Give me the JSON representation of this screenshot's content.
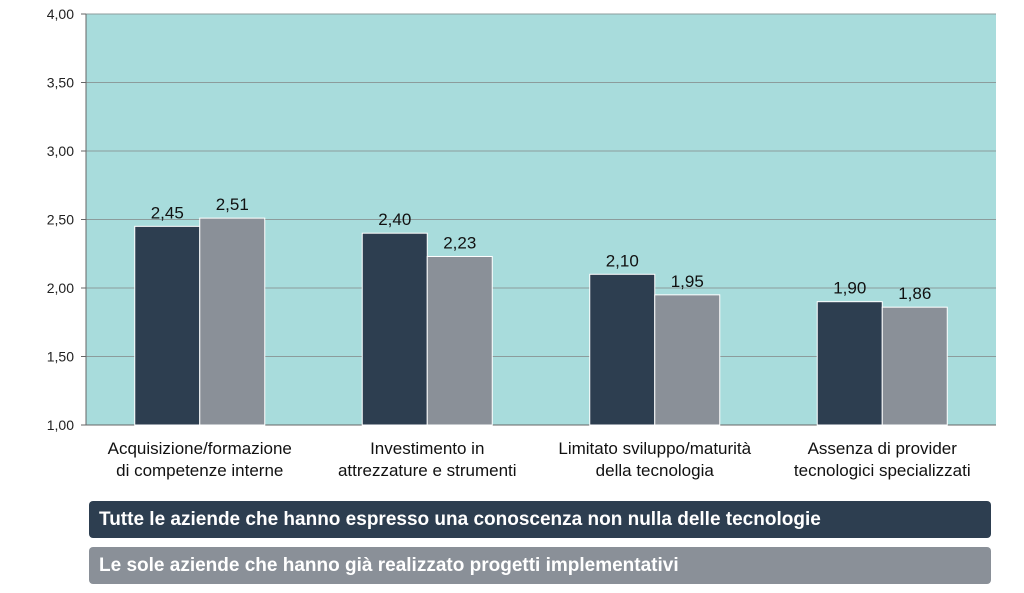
{
  "chart_data": {
    "type": "bar",
    "categories": [
      [
        "Acquisizione/formazione",
        "di competenze interne"
      ],
      [
        "Investimento in",
        "attrezzature e strumenti"
      ],
      [
        "Limitato sviluppo/maturità",
        "della tecnologia"
      ],
      [
        "Assenza di provider",
        "tecnologici specializzati"
      ]
    ],
    "series": [
      {
        "name": "Tutte le aziende che hanno espresso una conoscenza non nulla delle tecnologie",
        "values": [
          2.45,
          2.4,
          2.1,
          1.9
        ],
        "labels": [
          "2,45",
          "2,40",
          "2,10",
          "1,90"
        ],
        "color": "#2d3e50"
      },
      {
        "name": "Le sole aziende che hanno già realizzato progetti implementativi",
        "values": [
          2.51,
          2.23,
          1.95,
          1.86
        ],
        "labels": [
          "2,51",
          "2,23",
          "1,95",
          "1,86"
        ],
        "color": "#8a9098"
      }
    ],
    "ylim": [
      1.0,
      4.0
    ],
    "yticks": [
      1.0,
      1.5,
      2.0,
      2.5,
      3.0,
      3.5,
      4.0
    ],
    "ytick_labels": [
      "1,00",
      "1,50",
      "2,00",
      "2,50",
      "3,00",
      "3,50",
      "4,00"
    ],
    "grid": true,
    "plot_background": "#a8dcdc",
    "legend_position": "bottom",
    "title": "",
    "xlabel": "",
    "ylabel": ""
  }
}
